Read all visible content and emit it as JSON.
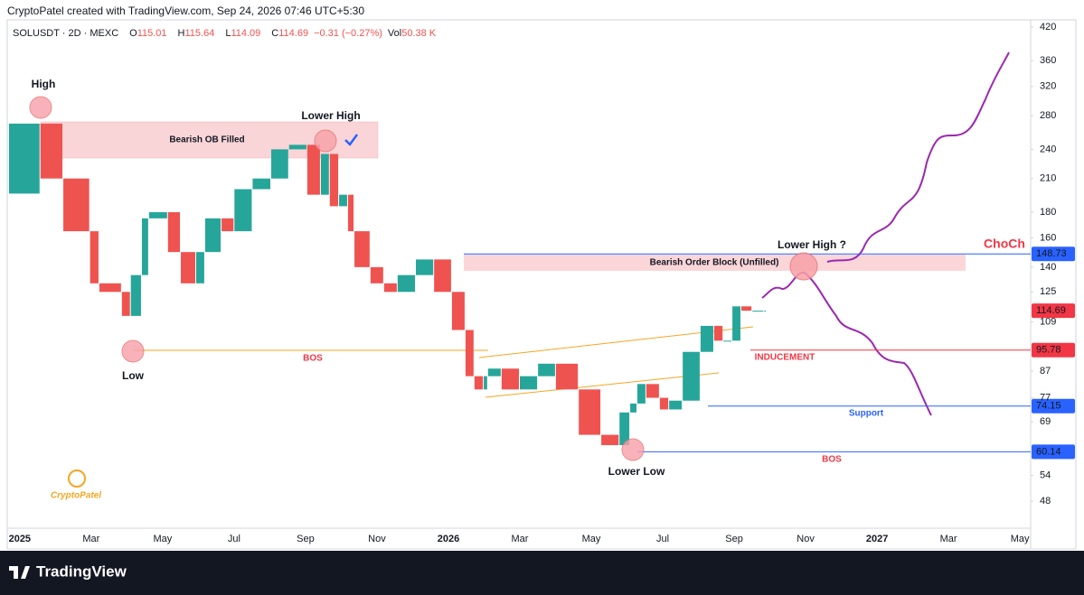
{
  "chart_data": {
    "type": "candlestick",
    "header": "CryptoPatel created with TradingView.com, Sep 24, 2026 07:46 UTC+5:30",
    "symbol": "SOLUSDT · 2D · MEXC",
    "ohlc": [
      {
        "key": "O",
        "value": 115.01
      },
      {
        "key": "H",
        "value": 115.64
      },
      {
        "key": "L",
        "value": 114.09
      },
      {
        "key": "C",
        "value": 114.69
      }
    ],
    "change": "−0.31 (−0.27%)",
    "volume_key": "Vol",
    "volume": "50.38 K",
    "log_scale": true,
    "up_color": "#26a69a",
    "down_color": "#ef5350",
    "x": [
      -0.3,
      0.58,
      1.22,
      1.97,
      2.23,
      2.86,
      3.11,
      3.42,
      3.62,
      4.15,
      4.51,
      4.94,
      5.19,
      5.65,
      6.01,
      6.52,
      7.04,
      7.54,
      8.05,
      8.43,
      8.68,
      8.94,
      9.19,
      9.37,
      9.82,
      10.2,
      10.58,
      11.09,
      11.6,
      12.1,
      12.48,
      12.73,
      12.99,
      13.11,
      13.49,
      14.0,
      14.51,
      15.01,
      15.65,
      16.28,
      16.79,
      17.09,
      17.29,
      17.54,
      17.92,
      18.18,
      18.56,
      19.06,
      19.44,
      19.7,
      19.95,
      20.2,
      20.51,
      20.84,
      20.91
    ],
    "values": [
      196,
      270,
      210,
      165,
      130,
      125,
      112,
      135,
      175,
      180,
      150,
      130,
      150,
      175,
      165,
      200,
      210,
      240,
      245,
      195,
      235,
      185,
      195,
      165,
      140,
      130,
      125,
      135,
      145,
      125,
      105,
      85,
      80,
      85,
      88,
      80,
      85,
      90,
      80,
      65,
      62,
      72,
      75,
      82,
      77,
      73,
      76,
      95,
      107,
      100,
      100,
      117,
      114.69,
      114.69,
      114.69
    ],
    "xlim": [
      -0.35,
      28.3
    ],
    "ylim": [
      42.4,
      434
    ],
    "xticks": [
      {
        "value": 0,
        "label": "2025"
      },
      {
        "value": 2,
        "label": "Mar"
      },
      {
        "value": 4,
        "label": "May"
      },
      {
        "value": 6,
        "label": "Jul"
      },
      {
        "value": 8,
        "label": "Sep"
      },
      {
        "value": 10,
        "label": "Nov"
      },
      {
        "value": 12,
        "label": "2026"
      },
      {
        "value": 14,
        "label": "Mar"
      },
      {
        "value": 16,
        "label": "May"
      },
      {
        "value": 18,
        "label": "Jul"
      },
      {
        "value": 20,
        "label": "Sep"
      },
      {
        "value": 22,
        "label": "Nov"
      },
      {
        "value": 24,
        "label": "2027"
      },
      {
        "value": 26,
        "label": "Mar"
      },
      {
        "value": 28,
        "label": "May"
      }
    ],
    "yticks": [
      420,
      360,
      320,
      280,
      240,
      210,
      180,
      160,
      140,
      125,
      109,
      87,
      77,
      69,
      54,
      48
    ],
    "price_labels": [
      {
        "value": 148.73,
        "color": "#2962ff"
      },
      {
        "value": 114.69,
        "color": "#f23645"
      },
      {
        "value": 95.78,
        "color": "#f23645"
      },
      {
        "value": 74.15,
        "color": "#2962ff"
      },
      {
        "value": 60.14,
        "color": "#2962ff"
      }
    ],
    "annotations": [
      "High",
      "Lower High",
      "Bearish OB Filled",
      "Low",
      "BOS",
      "Lower High ?",
      "Bearish Order Block (Unfilled)",
      "ChoCh",
      "INDUCEMENT",
      "Support",
      "Lower Low",
      "BOS",
      "CryptoPatel"
    ],
    "brand": "TradingView"
  }
}
